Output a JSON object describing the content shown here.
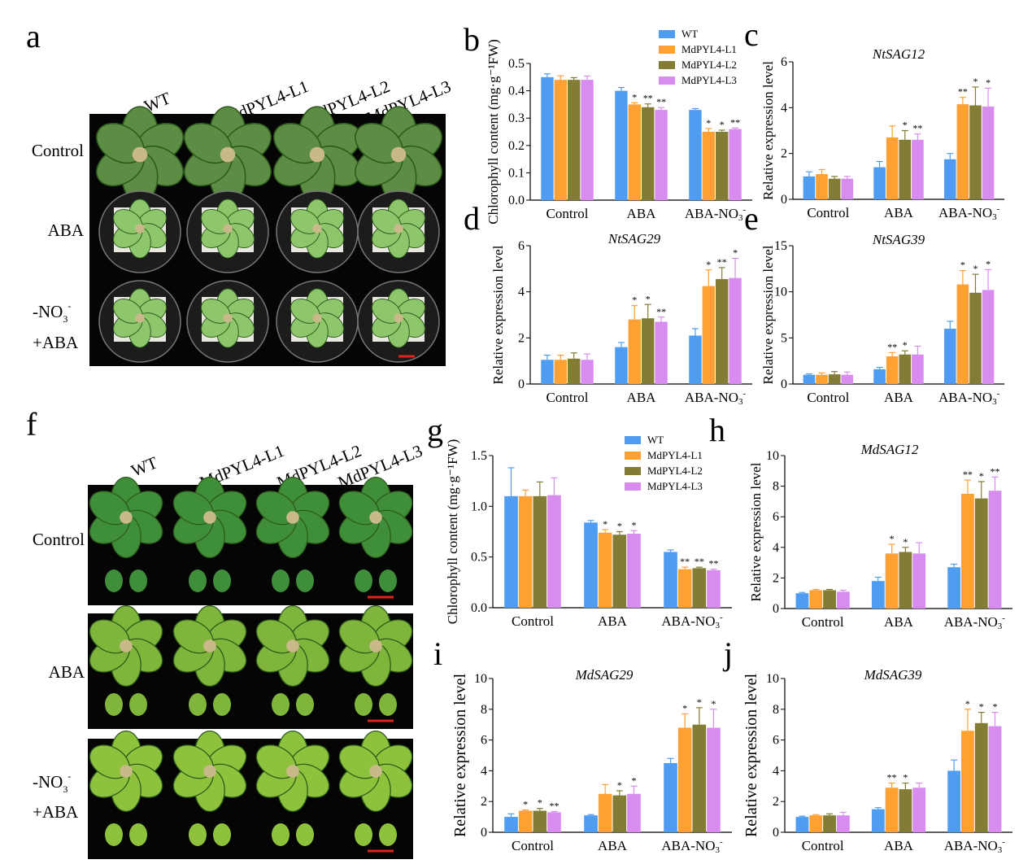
{
  "colors": {
    "WT": "#4e9df3",
    "MdPYL4-L1": "#ffa033",
    "MdPYL4-L2": "#837c34",
    "MdPYL4-L3": "#d98cf0"
  },
  "photo_a": {
    "label": "a",
    "columns": [
      "WT",
      "MdPYL4-L1",
      "MdPYL4-L2",
      "MdPYL4-L3"
    ],
    "rows": [
      {
        "lines": [
          "Control"
        ]
      },
      {
        "lines": [
          "ABA"
        ]
      },
      {
        "lines": [
          "-NO",
          "+ABA"
        ],
        "sub": "3",
        "sup": "-"
      }
    ]
  },
  "photo_f": {
    "label": "f",
    "columns": [
      "WT",
      "MdPYL4-L1",
      "MdPYL4-L2",
      "MdPYL4-L3"
    ],
    "rows": [
      {
        "lines": [
          "Control"
        ]
      },
      {
        "lines": [
          "ABA"
        ]
      },
      {
        "lines": [
          "-NO",
          "+ABA"
        ],
        "sub": "3",
        "sup": "-"
      }
    ]
  },
  "chart_data": [
    {
      "id": "b",
      "label": "b",
      "type": "bar",
      "title": "",
      "ylabel": "Chlorophyll content (mg·g⁻¹FW)",
      "categories": [
        "Control",
        "ABA",
        "ABA-NO3-"
      ],
      "ylim": [
        0,
        0.5
      ],
      "yticks": [
        "0.0",
        "0.1",
        "0.2",
        "0.3",
        "0.4",
        "0.5"
      ],
      "legend": [
        "WT",
        "MdPYL4-L1",
        "MdPYL4-L2",
        "MdPYL4-L3"
      ],
      "series": [
        {
          "name": "WT",
          "values": [
            0.45,
            0.4,
            0.33
          ],
          "err": [
            0.012,
            0.012,
            0.005
          ],
          "sig": [
            "",
            "",
            ""
          ]
        },
        {
          "name": "MdPYL4-L1",
          "values": [
            0.44,
            0.35,
            0.25
          ],
          "err": [
            0.015,
            0.006,
            0.012
          ],
          "sig": [
            "",
            "*",
            "*"
          ]
        },
        {
          "name": "MdPYL4-L2",
          "values": [
            0.44,
            0.34,
            0.25
          ],
          "err": [
            0.008,
            0.012,
            0.006
          ],
          "sig": [
            "",
            "**",
            "*"
          ]
        },
        {
          "name": "MdPYL4-L3",
          "values": [
            0.44,
            0.33,
            0.26
          ],
          "err": [
            0.014,
            0.009,
            0.004
          ],
          "sig": [
            "",
            "**",
            "**"
          ]
        }
      ]
    },
    {
      "id": "c",
      "label": "c",
      "type": "bar",
      "title": "NtSAG12",
      "ylabel": "Relative expression level",
      "categories": [
        "Control",
        "ABA",
        "ABA-NO3-"
      ],
      "ylim": [
        0,
        6
      ],
      "yticks": [
        "0",
        "2",
        "4",
        "6"
      ],
      "series": [
        {
          "name": "WT",
          "values": [
            1.0,
            1.4,
            1.75
          ],
          "err": [
            0.2,
            0.25,
            0.25
          ],
          "sig": [
            "",
            "",
            ""
          ]
        },
        {
          "name": "MdPYL4-L1",
          "values": [
            1.1,
            2.7,
            4.15
          ],
          "err": [
            0.2,
            0.5,
            0.3
          ],
          "sig": [
            "",
            "",
            "**"
          ]
        },
        {
          "name": "MdPYL4-L2",
          "values": [
            0.9,
            2.6,
            4.1
          ],
          "err": [
            0.1,
            0.4,
            0.8
          ],
          "sig": [
            "",
            "*",
            "*"
          ]
        },
        {
          "name": "MdPYL4-L3",
          "values": [
            0.9,
            2.6,
            4.05
          ],
          "err": [
            0.1,
            0.25,
            0.8
          ],
          "sig": [
            "",
            "**",
            "*"
          ]
        }
      ]
    },
    {
      "id": "d",
      "label": "d",
      "type": "bar",
      "title": "NtSAG29",
      "ylabel": "Relative expression level",
      "categories": [
        "Control",
        "ABA",
        "ABA-NO3-"
      ],
      "ylim": [
        0,
        6
      ],
      "yticks": [
        "0",
        "2",
        "4",
        "6"
      ],
      "series": [
        {
          "name": "WT",
          "values": [
            1.05,
            1.6,
            2.1
          ],
          "err": [
            0.2,
            0.2,
            0.3
          ],
          "sig": [
            "",
            "",
            ""
          ]
        },
        {
          "name": "MdPYL4-L1",
          "values": [
            1.05,
            2.8,
            4.25
          ],
          "err": [
            0.2,
            0.6,
            0.7
          ],
          "sig": [
            "",
            "*",
            "*"
          ]
        },
        {
          "name": "MdPYL4-L2",
          "values": [
            1.1,
            2.85,
            4.55
          ],
          "err": [
            0.25,
            0.6,
            0.5
          ],
          "sig": [
            "",
            "*",
            "**"
          ]
        },
        {
          "name": "MdPYL4-L3",
          "values": [
            1.05,
            2.7,
            4.6
          ],
          "err": [
            0.25,
            0.2,
            0.85
          ],
          "sig": [
            "",
            "**",
            "*"
          ]
        }
      ]
    },
    {
      "id": "e",
      "label": "e",
      "type": "bar",
      "title": "NtSAG39",
      "ylabel": "Relative expression level",
      "categories": [
        "Control",
        "ABA",
        "ABA-NO3-"
      ],
      "ylim": [
        0,
        15
      ],
      "yticks": [
        "0",
        "5",
        "10",
        "15"
      ],
      "series": [
        {
          "name": "WT",
          "values": [
            1.0,
            1.6,
            6.0
          ],
          "err": [
            0.1,
            0.2,
            0.8
          ],
          "sig": [
            "",
            "",
            ""
          ]
        },
        {
          "name": "MdPYL4-L1",
          "values": [
            1.0,
            3.0,
            10.8
          ],
          "err": [
            0.2,
            0.4,
            1.5
          ],
          "sig": [
            "",
            "**",
            "*"
          ]
        },
        {
          "name": "MdPYL4-L2",
          "values": [
            1.05,
            3.2,
            9.9
          ],
          "err": [
            0.3,
            0.4,
            2.0
          ],
          "sig": [
            "",
            "*",
            "*"
          ]
        },
        {
          "name": "MdPYL4-L3",
          "values": [
            1.0,
            3.2,
            10.2
          ],
          "err": [
            0.3,
            0.9,
            2.2
          ],
          "sig": [
            "",
            "",
            "*"
          ]
        }
      ]
    },
    {
      "id": "g",
      "label": "g",
      "type": "bar",
      "title": "",
      "ylabel": "Chlorophyll content (mg·g⁻¹FW)",
      "categories": [
        "Control",
        "ABA",
        "ABA-NO3-"
      ],
      "ylim": [
        0,
        1.5
      ],
      "yticks": [
        "0.0",
        "0.5",
        "1.0",
        "1.5"
      ],
      "legend": [
        "WT",
        "MdPYL4-L1",
        "MdPYL4-L2",
        "MdPYL4-L3"
      ],
      "series": [
        {
          "name": "WT",
          "values": [
            1.1,
            0.84,
            0.55
          ],
          "err": [
            0.28,
            0.02,
            0.02
          ],
          "sig": [
            "",
            "",
            ""
          ]
        },
        {
          "name": "MdPYL4-L1",
          "values": [
            1.1,
            0.74,
            0.38
          ],
          "err": [
            0.06,
            0.03,
            0.02
          ],
          "sig": [
            "",
            "*",
            "**"
          ]
        },
        {
          "name": "MdPYL4-L2",
          "values": [
            1.1,
            0.72,
            0.39
          ],
          "err": [
            0.14,
            0.03,
            0.01
          ],
          "sig": [
            "",
            "*",
            "**"
          ]
        },
        {
          "name": "MdPYL4-L3",
          "values": [
            1.11,
            0.73,
            0.37
          ],
          "err": [
            0.17,
            0.03,
            0.01
          ],
          "sig": [
            "",
            "*",
            "**"
          ]
        }
      ]
    },
    {
      "id": "h",
      "label": "h",
      "type": "bar",
      "title": "MdSAG12",
      "ylabel": "Relative expression level",
      "categories": [
        "Control",
        "ABA",
        "ABA-NO3-"
      ],
      "ylim": [
        0,
        10
      ],
      "yticks": [
        "0",
        "2",
        "4",
        "6",
        "8",
        "10"
      ],
      "series": [
        {
          "name": "WT",
          "values": [
            1.0,
            1.8,
            2.7
          ],
          "err": [
            0.05,
            0.25,
            0.2
          ],
          "sig": [
            "",
            "",
            ""
          ]
        },
        {
          "name": "MdPYL4-L1",
          "values": [
            1.2,
            3.6,
            7.5
          ],
          "err": [
            0.05,
            0.6,
            0.9
          ],
          "sig": [
            "",
            "*",
            "**"
          ]
        },
        {
          "name": "MdPYL4-L2",
          "values": [
            1.2,
            3.7,
            7.2
          ],
          "err": [
            0.05,
            0.3,
            1.1
          ],
          "sig": [
            "",
            "*",
            "*"
          ]
        },
        {
          "name": "MdPYL4-L3",
          "values": [
            1.1,
            3.6,
            7.7
          ],
          "err": [
            0.1,
            0.7,
            0.9
          ],
          "sig": [
            "",
            "",
            "**"
          ]
        }
      ]
    },
    {
      "id": "i",
      "label": "i",
      "type": "bar",
      "title": "MdSAG29",
      "ylabel": "Relative expression level",
      "categories": [
        "Control",
        "ABA",
        "ABA-NO3-"
      ],
      "ylim": [
        0,
        10
      ],
      "yticks": [
        "0",
        "2",
        "4",
        "6",
        "8",
        "10"
      ],
      "series": [
        {
          "name": "WT",
          "values": [
            1.0,
            1.1,
            4.5
          ],
          "err": [
            0.2,
            0.05,
            0.3
          ],
          "sig": [
            "",
            "",
            ""
          ]
        },
        {
          "name": "MdPYL4-L1",
          "values": [
            1.4,
            2.5,
            6.8
          ],
          "err": [
            0.05,
            0.6,
            0.9
          ],
          "sig": [
            "*",
            "",
            "*"
          ]
        },
        {
          "name": "MdPYL4-L2",
          "values": [
            1.4,
            2.4,
            7.0
          ],
          "err": [
            0.15,
            0.3,
            1.1
          ],
          "sig": [
            "*",
            "*",
            "*"
          ]
        },
        {
          "name": "MdPYL4-L3",
          "values": [
            1.3,
            2.5,
            6.8
          ],
          "err": [
            0.05,
            0.5,
            1.2
          ],
          "sig": [
            "**",
            "*",
            "*"
          ]
        }
      ]
    },
    {
      "id": "j",
      "label": "j",
      "type": "bar",
      "title": "MdSAG39",
      "ylabel": "Relative expression level",
      "categories": [
        "Control",
        "ABA",
        "ABA-NO3-"
      ],
      "ylim": [
        0,
        10
      ],
      "yticks": [
        "0",
        "2",
        "4",
        "6",
        "8",
        "10"
      ],
      "series": [
        {
          "name": "WT",
          "values": [
            1.0,
            1.5,
            4.0
          ],
          "err": [
            0.05,
            0.1,
            0.7
          ],
          "sig": [
            "",
            "",
            ""
          ]
        },
        {
          "name": "MdPYL4-L1",
          "values": [
            1.1,
            2.9,
            6.6
          ],
          "err": [
            0.05,
            0.3,
            1.4
          ],
          "sig": [
            "",
            "**",
            "*"
          ]
        },
        {
          "name": "MdPYL4-L2",
          "values": [
            1.1,
            2.8,
            7.1
          ],
          "err": [
            0.1,
            0.4,
            0.7
          ],
          "sig": [
            "",
            "*",
            "*"
          ]
        },
        {
          "name": "MdPYL4-L3",
          "values": [
            1.1,
            2.9,
            6.9
          ],
          "err": [
            0.2,
            0.3,
            0.9
          ],
          "sig": [
            "",
            "",
            "*"
          ]
        }
      ]
    }
  ]
}
